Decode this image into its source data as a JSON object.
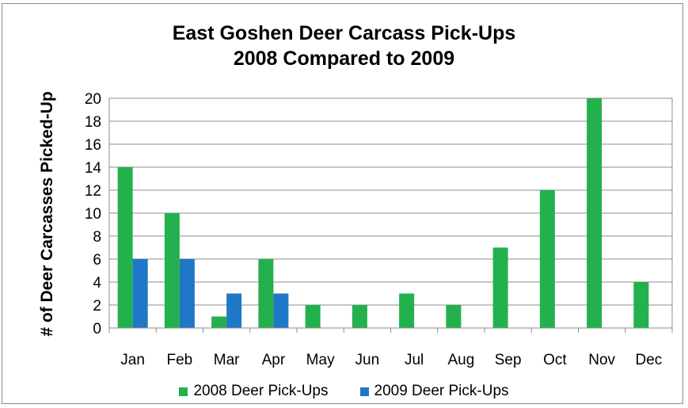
{
  "chart_data": {
    "type": "bar",
    "title_line1": "East Goshen Deer Carcass Pick-Ups",
    "title_line2": "2008 Compared to 2009",
    "ylabel": "# of Deer Carcasses Picked-Up",
    "xlabel": "",
    "ylim": [
      0,
      20
    ],
    "yticks": [
      "0",
      "2",
      "4",
      "6",
      "8",
      "10",
      "12",
      "14",
      "16",
      "18",
      "20"
    ],
    "grid": true,
    "legend_position": "bottom",
    "categories": [
      "Jan",
      "Feb",
      "Mar",
      "Apr",
      "May",
      "Jun",
      "Jul",
      "Aug",
      "Sep",
      "Oct",
      "Nov",
      "Dec"
    ],
    "series": [
      {
        "name": "2008 Deer Pick-Ups",
        "color": "#22b14c",
        "values": [
          14,
          10,
          1,
          6,
          2,
          2,
          3,
          2,
          7,
          12,
          20,
          4
        ]
      },
      {
        "name": "2009 Deer Pick-Ups",
        "color": "#1f77c8",
        "values": [
          6,
          6,
          3,
          3,
          null,
          null,
          null,
          null,
          null,
          null,
          null,
          null
        ]
      }
    ]
  }
}
